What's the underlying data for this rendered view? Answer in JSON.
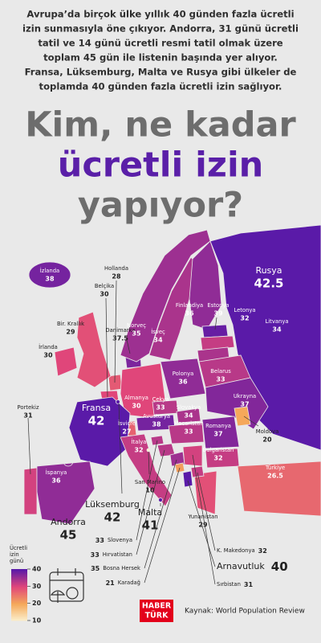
{
  "intro_lines": [
    "Avrupa’da birçok ülke yıllık 40 günden fazla ücretli",
    "izin sunmasıyla öne çıkıyor. Andorra, 31 günü ücretli",
    "tatil ve 14 günü ücretli resmi tatil olmak üzere",
    "toplam 45 gün ile listenin başında yer alıyor.",
    "Fransa, Lüksemburg, Malta ve Rusya gibi ülkeler de",
    "toplamda 40 günden fazla ücretli izin sağlıyor."
  ],
  "title_lines": [
    {
      "text": "Kim, ne kadar",
      "color": "#6d6d6d"
    },
    {
      "text": "ücretli izin",
      "color": "#5a1fa8"
    },
    {
      "text": "yapıyor?",
      "color": "#6d6d6d"
    }
  ],
  "map": {
    "countries": [
      {
        "name": "İzlanda",
        "value": 38
      },
      {
        "name": "Hollanda",
        "value": 28
      },
      {
        "name": "Belçika",
        "value": 30
      },
      {
        "name": "Bir. Krallık",
        "value": 29
      },
      {
        "name": "İrlanda",
        "value": 30
      },
      {
        "name": "Danimarka",
        "value": 37.5
      },
      {
        "name": "Norveç",
        "value": 35
      },
      {
        "name": "İsveç",
        "value": 34
      },
      {
        "name": "Finlandiya",
        "value": 36
      },
      {
        "name": "Estonya",
        "value": 39
      },
      {
        "name": "Letonya",
        "value": 32
      },
      {
        "name": "Litvanya",
        "value": 34
      },
      {
        "name": "Rusya",
        "value": 42.5
      },
      {
        "name": "Belarus",
        "value": 33
      },
      {
        "name": "Polonya",
        "value": 36
      },
      {
        "name": "Almanya",
        "value": 30
      },
      {
        "name": "Çekya",
        "value": 33
      },
      {
        "name": "Slovakya",
        "value": 34
      },
      {
        "name": "Ukrayna",
        "value": 37
      },
      {
        "name": "Avusturya",
        "value": 38
      },
      {
        "name": "İsviçre",
        "value": 27
      },
      {
        "name": "Macaristan",
        "value": 33
      },
      {
        "name": "Romanya",
        "value": 37
      },
      {
        "name": "Moldova",
        "value": 20
      },
      {
        "name": "Fransa",
        "value": 42
      },
      {
        "name": "Portekiz",
        "value": 31
      },
      {
        "name": "İspanya",
        "value": 36
      },
      {
        "name": "İtalya",
        "value": 32
      },
      {
        "name": "Bulgaristan",
        "value": 32
      },
      {
        "name": "Türkiye",
        "value": 26.5
      },
      {
        "name": "San Marino",
        "value": 10
      },
      {
        "name": "Malta",
        "value": 41
      },
      {
        "name": "Lüksemburg",
        "value": 42
      },
      {
        "name": "Andorra",
        "value": 45
      },
      {
        "name": "Yunanistan",
        "value": 29
      },
      {
        "name": "Slovenya",
        "value": 33
      },
      {
        "name": "Hırvatistan",
        "value": 33
      },
      {
        "name": "Bosna Hersek",
        "value": 35
      },
      {
        "name": "Karadağ",
        "value": 21
      },
      {
        "name": "K. Makedonya",
        "value": 32
      },
      {
        "name": "Arnavutluk",
        "value": 40
      },
      {
        "name": "Sırbistan",
        "value": 31
      }
    ],
    "legend": {
      "title_lines": [
        "Ücretli",
        "izin",
        "günü"
      ],
      "ticks": [
        40,
        30,
        20,
        10
      ],
      "colors": [
        "#5a1aa8",
        "#e0467a",
        "#f5a85a",
        "#fbf1cf"
      ]
    }
  },
  "footer": {
    "logo_lines": [
      "HABER",
      "TÜRK"
    ],
    "source": "Kaynak: World Population Review"
  }
}
